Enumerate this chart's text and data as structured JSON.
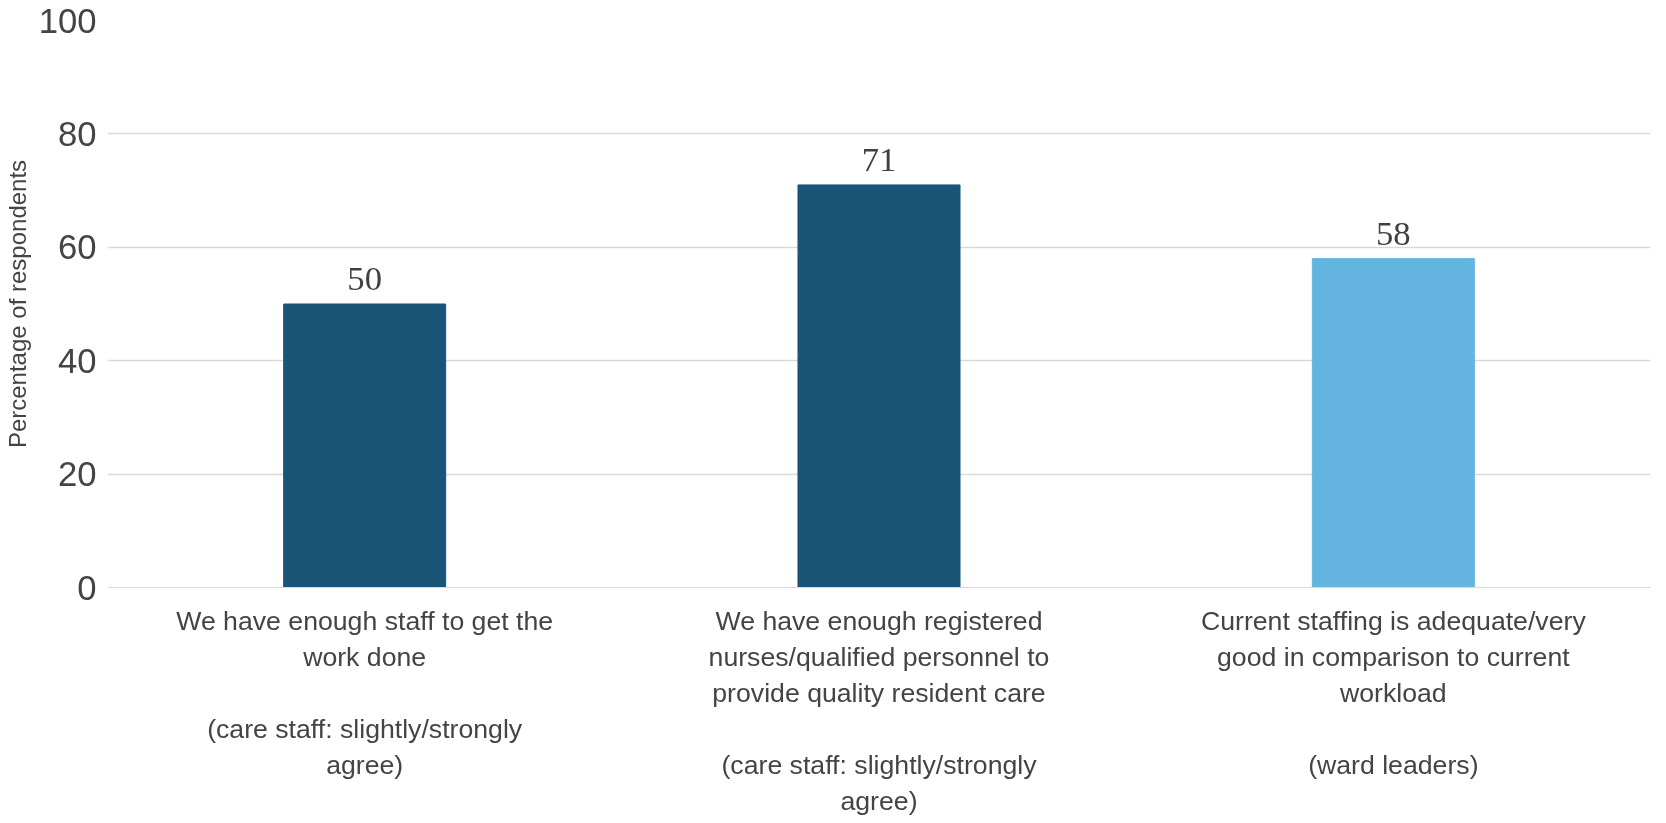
{
  "chart_data": {
    "type": "bar",
    "ylabel": "Percentage of respondents",
    "categories": [
      "We have enough staff to get the work done\n\n(care staff: slightly/strongly agree)",
      "We have enough registered nurses/qualified personnel to provide quality resident care\n\n(care staff: slightly/strongly agree)",
      "Current staffing is adequate/very good in comparison to current workload\n\n(ward leaders)"
    ],
    "values": [
      50,
      71,
      58
    ],
    "colors": [
      "#1a5577",
      "#1a5577",
      "#63b5e0"
    ],
    "ylim": [
      0,
      100
    ],
    "yticks": [
      0,
      20,
      40,
      60,
      80,
      100
    ],
    "grid": "y",
    "data_labels": true
  }
}
